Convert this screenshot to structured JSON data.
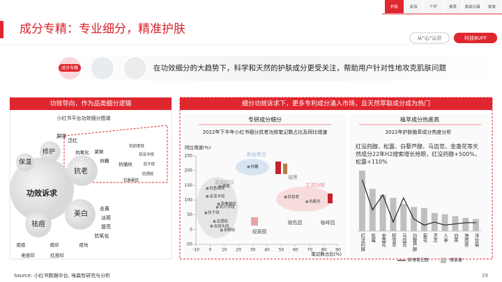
{
  "header": {
    "title": "成分专精：专业细分，精准护肤",
    "tabs": [
      "护肤",
      "彩妆",
      "个护",
      "香氛",
      "美容仪器",
      "家居"
    ],
    "buttons": [
      "从\"心\"认识",
      "科技BUFF"
    ]
  },
  "banner": {
    "tag": "成分专精",
    "text": "在功效细分的大趋势下，科学和天然的护肤成分更受关注，帮助用户针对性地攻克肌肤问题"
  },
  "left_panel": {
    "title": "功效导向，作为品类细分逻辑",
    "subtitle": "小红书平台功效细分图谱",
    "nodes": [
      "屏障",
      "泛红",
      "修护",
      "保湿",
      "抗氧化",
      "紧致",
      "抗糖",
      "抗老",
      "抗皱纹",
      "抗初老纹",
      "抗法令纹",
      "抗干纹",
      "抗颈纹",
      "抗鱼尾纹",
      "功效诉求",
      "美白",
      "去黄",
      "淡斑",
      "提亮",
      "抗氧化",
      "祛痘",
      "痘痘",
      "痘印",
      "痘坑",
      "老痘印",
      "红痘印"
    ]
  },
  "middle_panel": {
    "title": "细分功效诉求下，更多专利成分涌入市场，且天然萃取成分成为热门",
    "sections": [
      "专研成分细分",
      "植萃成分热度高"
    ]
  },
  "chart_data": [
    {
      "type": "scatter",
      "title": "2022年下半年小红书细分抗老功效笔记数占比及同比增速",
      "x_label": "笔记数占比(%)",
      "y_label": "同比增速(%)",
      "labels": [
        "抗鱼尾纹",
        "去法令纹",
        "紧致",
        "改善皱纹",
        "去川字纹",
        "抗干纹",
        "去颈纹",
        "去抬头纹",
        "去眼纹",
        "抗糖",
        "抗初老",
        "抗氧化"
      ],
      "x": [
        -2,
        -2,
        7,
        6,
        5,
        -3,
        3,
        1,
        8,
        27,
        53,
        68
      ],
      "values": [
        140,
        113,
        147,
        87,
        76,
        57,
        28,
        12,
        -2,
        213,
        111,
        95
      ],
      "color": "#7f7f7f",
      "xlim": [
        -10,
        90
      ],
      "xticks": [
        -10,
        0,
        10,
        20,
        30,
        40,
        50,
        60,
        70,
        80,
        90
      ],
      "ylim": [
        -50,
        250
      ],
      "yticks": [
        -50,
        0,
        50,
        100,
        150,
        200,
        250
      ],
      "annotations": [
        "新肽聚合",
        "基础抗纹",
        "主流功效",
        "褪黑",
        "视黄醇",
        "玻色因",
        "咖啡因"
      ]
    },
    {
      "type": "combo",
      "title": "2022年护肤植萃成分热度分析",
      "annotation": "红没药醇、松露、白藜芦醇、马齿苋、金盏花等天然成分22年H2搜索增长抢眼，红没药醇+500%，松露+110%",
      "categories": [
        "红没药醇",
        "松露",
        "金盏花",
        "积雪草",
        "马齿苋",
        "白藜芦醇",
        "菊花",
        "灵芝",
        "人参",
        "白茶",
        "海茴香",
        "洋甘菊"
      ],
      "series": [
        {
          "name": "新增笔记数",
          "kind": "line",
          "color": "#222222",
          "values": [
            85,
            35,
            60,
            15,
            55,
            20,
            10,
            15,
            10,
            12,
            14,
            14
          ]
        },
        {
          "name": "搜索量",
          "kind": "bar",
          "color": "#bfbfbf",
          "values": [
            100,
            70,
            60,
            55,
            45,
            40,
            38,
            30,
            28,
            25,
            22,
            20
          ]
        }
      ],
      "ylim": [
        0,
        100
      ]
    }
  ],
  "footer": {
    "source": "Source: 小红书数据中台, 埃森哲研究与分析",
    "page": "29"
  }
}
